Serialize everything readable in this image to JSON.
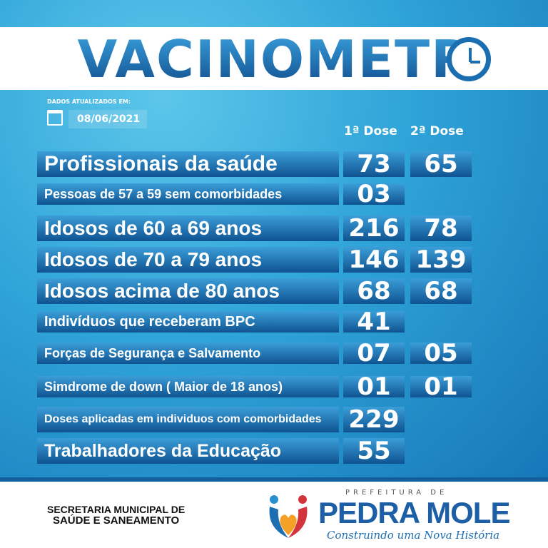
{
  "header": {
    "title": "VACINOMETR",
    "title_icon": "clock-icon"
  },
  "updated": {
    "label": "DADOS ATUALIZADOS EM:",
    "date": "08/06/2021",
    "icon": "calendar-icon"
  },
  "columns": {
    "dose1": "1ª Dose",
    "dose2": "2ª Dose"
  },
  "rows": [
    {
      "label": "Profissionais da saúde",
      "dose1": "73",
      "dose2": "65"
    },
    {
      "label": "Pessoas de 57 a 59 sem comorbidades",
      "dose1": "03",
      "dose2": ""
    },
    {
      "label": "Idosos de 60 a 69 anos",
      "dose1": "216",
      "dose2": "78"
    },
    {
      "label": "Idosos de 70 a 79 anos",
      "dose1": "146",
      "dose2": "139"
    },
    {
      "label": "Idosos acima de  80 anos",
      "dose1": "68",
      "dose2": "68"
    },
    {
      "label": "Indivíduos que receberam BPC",
      "dose1": "41",
      "dose2": ""
    },
    {
      "label": "Forças de Segurança e Salvamento",
      "dose1": "07",
      "dose2": "05"
    },
    {
      "label": "Simdrome de down ( Maior de 18 anos)",
      "dose1": "01",
      "dose2": "01"
    },
    {
      "label": "Doses aplicadas em individuos com comorbidades",
      "dose1": "229",
      "dose2": ""
    },
    {
      "label": "Trabalhadores da Educação",
      "dose1": "55",
      "dose2": ""
    }
  ],
  "footer": {
    "secretaria_line1": "SECRETARIA MUNICIPAL DE",
    "secretaria_line2": "SAÚDE E SANEAMENTO",
    "prefeitura": "PREFEITURA DE",
    "city": "PEDRA MOLE",
    "slogan": "Construindo uma Nova História"
  },
  "colors": {
    "accent": "#1b6fb0",
    "bar_top": "#3b9ed8",
    "bar_bottom": "#0f5391"
  }
}
